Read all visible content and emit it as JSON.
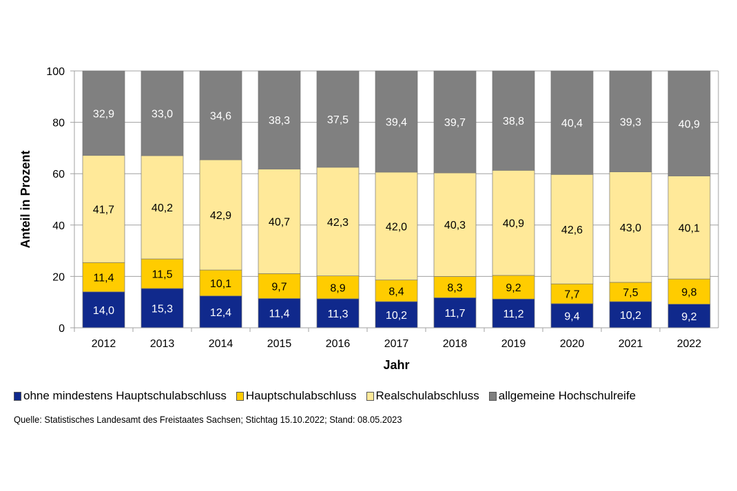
{
  "chart_data": {
    "type": "bar",
    "stacked": true,
    "title": "",
    "xlabel": "Jahr",
    "ylabel": "Anteil in Prozent",
    "ylim": [
      0,
      100
    ],
    "yticks": [
      "0",
      "20",
      "40",
      "60",
      "80",
      "100"
    ],
    "grid": true,
    "legend_position": "bottom",
    "categories": [
      "2012",
      "2013",
      "2014",
      "2015",
      "2016",
      "2017",
      "2018",
      "2019",
      "2020",
      "2021",
      "2022"
    ],
    "series": [
      {
        "name": "ohne mindestens Hauptschulabschluss",
        "color": "#10298c",
        "label_color": "#ffffff",
        "values": [
          14.0,
          15.3,
          12.4,
          11.4,
          11.3,
          10.2,
          11.7,
          11.2,
          9.4,
          10.2,
          9.2
        ],
        "labels": [
          "14,0",
          "15,3",
          "12,4",
          "11,4",
          "11,3",
          "10,2",
          "11,7",
          "11,2",
          "9,4",
          "10,2",
          "9,2"
        ]
      },
      {
        "name": "Hauptschulabschluss",
        "color": "#ffcc00",
        "label_color": "#000000",
        "values": [
          11.4,
          11.5,
          10.1,
          9.7,
          8.9,
          8.4,
          8.3,
          9.2,
          7.7,
          7.5,
          9.8
        ],
        "labels": [
          "11,4",
          "11,5",
          "10,1",
          "9,7",
          "8,9",
          "8,4",
          "8,3",
          "9,2",
          "7,7",
          "7,5",
          "9,8"
        ]
      },
      {
        "name": "Realschulabschluss",
        "color": "#ffe999",
        "label_color": "#000000",
        "values": [
          41.7,
          40.2,
          42.9,
          40.7,
          42.3,
          42.0,
          40.3,
          40.9,
          42.6,
          43.0,
          40.1
        ],
        "labels": [
          "41,7",
          "40,2",
          "42,9",
          "40,7",
          "42,3",
          "42,0",
          "40,3",
          "40,9",
          "42,6",
          "43,0",
          "40,1"
        ]
      },
      {
        "name": "allgemeine Hochschulreife",
        "color": "#808080",
        "label_color": "#ffffff",
        "values": [
          32.9,
          33.0,
          34.6,
          38.3,
          37.5,
          39.4,
          39.7,
          38.8,
          40.4,
          39.3,
          40.9
        ],
        "labels": [
          "32,9",
          "33,0",
          "34,6",
          "38,3",
          "37,5",
          "39,4",
          "39,7",
          "38,8",
          "40,4",
          "39,3",
          "40,9"
        ]
      }
    ]
  },
  "source": "Quelle: Statistisches Landesamt des Freistaates Sachsen; Stichtag 15.10.2022; Stand: 08.05.2023"
}
